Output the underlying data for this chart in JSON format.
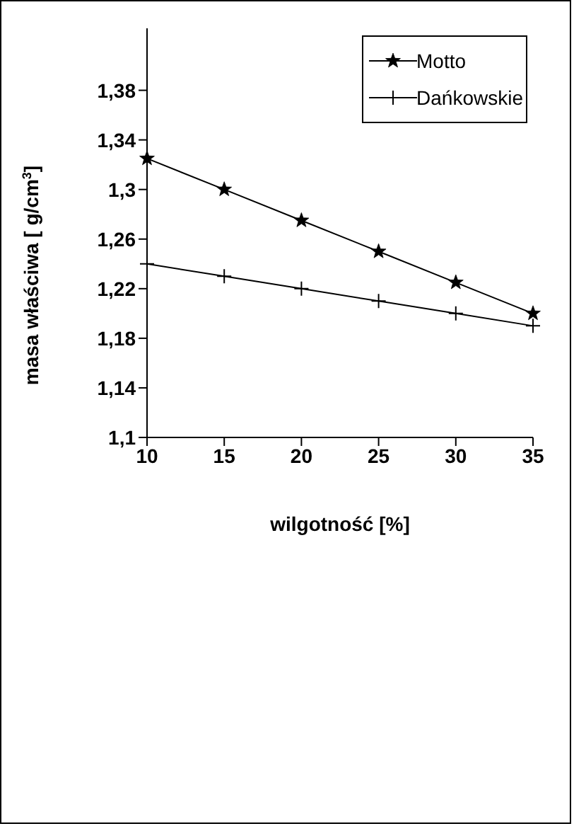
{
  "chart_data": {
    "type": "line",
    "xlabel": "wilgotność [%]",
    "ylabel": "masa właściwa [ g/cm$^{3}$]",
    "x": [
      10,
      15,
      20,
      25,
      30,
      35
    ],
    "series": [
      {
        "name": "Motto",
        "color": "#000000",
        "marker": "star",
        "values": [
          1.325,
          1.3,
          1.275,
          1.25,
          1.225,
          1.2
        ]
      },
      {
        "name": "Dańkowskie",
        "color": "#000000",
        "marker": "cross",
        "values": [
          1.24,
          1.23,
          1.22,
          1.21,
          1.2,
          1.19
        ]
      }
    ],
    "xlim": [
      10,
      35
    ],
    "xticks": [
      10,
      15,
      20,
      25,
      30,
      35
    ],
    "ylim": [
      1.1,
      1.43
    ],
    "yticks": [
      {
        "value": 1.1,
        "label": "1,1"
      },
      {
        "value": 1.14,
        "label": "1,14"
      },
      {
        "value": 1.18,
        "label": "1,18"
      },
      {
        "value": 1.22,
        "label": "1,22"
      },
      {
        "value": 1.26,
        "label": "1,26"
      },
      {
        "value": 1.3,
        "label": "1,3"
      },
      {
        "value": 1.34,
        "label": "1,34"
      },
      {
        "value": 1.38,
        "label": "1,38"
      }
    ],
    "grid": false,
    "legend": "top right",
    "line_style": "solid"
  }
}
